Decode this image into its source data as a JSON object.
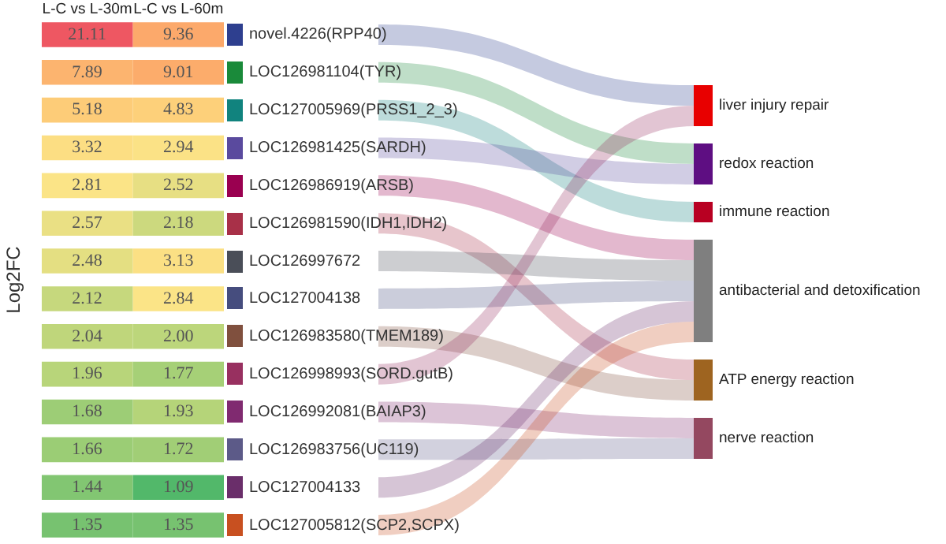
{
  "chart_data": [
    {
      "type": "heatmap",
      "ylabel": "Log2FC",
      "categories": [
        "L-C vs L-30m",
        "L-C vs L-60m"
      ],
      "y_categories": [
        null,
        null,
        null,
        null,
        null,
        null,
        null,
        null,
        null,
        null,
        null,
        null,
        null,
        null
      ],
      "y2_categories": [
        "novel.4226(RPP40)",
        "LOC126981104(TYR)",
        "LOC127005969(PRSS1_2_3)",
        "LOC126981425(SARDH)",
        "LOC126986919(ARSB)",
        "LOC126981590(IDH1,IDH2)",
        "LOC126997672",
        "LOC127004138",
        "LOC126983580(TMEM189)",
        "LOC126998993(SORD.gutB)",
        "LOC126992081(BAIAP3)",
        "LOC126983756(UC119)",
        "LOC127004133",
        "LOC127005812(SCP2,SCPX)"
      ],
      "cells": [
        [
          21.11,
          9.36
        ],
        [
          7.89,
          9.01
        ],
        [
          5.18,
          4.83
        ],
        [
          3.32,
          2.94
        ],
        [
          2.81,
          2.52
        ],
        [
          2.57,
          2.18
        ],
        [
          2.48,
          3.13
        ],
        [
          2.12,
          2.84
        ],
        [
          2.04,
          2.0
        ],
        [
          1.96,
          1.77
        ],
        [
          1.68,
          1.93
        ],
        [
          1.66,
          1.72
        ],
        [
          1.44,
          1.09
        ],
        [
          1.35,
          1.35
        ]
      ],
      "cell_labels": [
        [
          "21.11",
          "9.36"
        ],
        [
          "7.89",
          "9.01"
        ],
        [
          "5.18",
          "4.83"
        ],
        [
          "3.32",
          "2.94"
        ],
        [
          "2.81",
          "2.52"
        ],
        [
          "2.57",
          "2.18"
        ],
        [
          "2.48",
          "3.13"
        ],
        [
          "2.12",
          "2.84"
        ],
        [
          "2.04",
          "2.00"
        ],
        [
          "1.96",
          "1.77"
        ],
        [
          "1.68",
          "1.93"
        ],
        [
          "1.66",
          "1.72"
        ],
        [
          "1.44",
          "1.09"
        ],
        [
          "1.35",
          "1.35"
        ]
      ],
      "data_labels": true
    },
    {
      "type": "other",
      "categories": [
        "liver injury repair",
        "redox reaction",
        "immune reaction",
        "antibacterial and detoxification",
        "ATP energy reaction",
        "nerve reaction"
      ],
      "colors": [
        "#e80000",
        "#5e0e82",
        "#b80022",
        "#7f7f7f",
        "#9e6420",
        "#944860"
      ],
      "series": [
        {
          "color": "#2e3f8f",
          "values": [
            true,
            null,
            null,
            null,
            null,
            null
          ]
        },
        {
          "color": "#1a8a3a",
          "values": [
            null,
            true,
            null,
            null,
            null,
            null
          ]
        },
        {
          "color": "#11837e",
          "values": [
            null,
            null,
            true,
            null,
            null,
            null
          ]
        },
        {
          "color": "#5a4a9e",
          "values": [
            null,
            true,
            null,
            null,
            null,
            null
          ]
        },
        {
          "color": "#9a0050",
          "values": [
            null,
            null,
            null,
            true,
            null,
            null
          ]
        },
        {
          "color": "#a83048",
          "values": [
            null,
            null,
            null,
            null,
            true,
            null
          ]
        },
        {
          "color": "#4a4e58",
          "values": [
            null,
            null,
            null,
            true,
            null,
            null
          ]
        },
        {
          "color": "#464d7e",
          "values": [
            null,
            null,
            null,
            true,
            null,
            null
          ]
        },
        {
          "color": "#80503e",
          "values": [
            null,
            null,
            null,
            null,
            true,
            null
          ]
        },
        {
          "color": "#983060",
          "values": [
            true,
            null,
            null,
            null,
            null,
            null
          ]
        },
        {
          "color": "#802a70",
          "values": [
            null,
            null,
            null,
            null,
            null,
            true
          ]
        },
        {
          "color": "#5c5a88",
          "values": [
            null,
            null,
            null,
            null,
            null,
            true
          ]
        },
        {
          "color": "#6a2e6a",
          "values": [
            null,
            null,
            null,
            true,
            null,
            null
          ]
        },
        {
          "color": "#c85020",
          "values": [
            null,
            null,
            null,
            true,
            null,
            null
          ]
        }
      ]
    }
  ]
}
